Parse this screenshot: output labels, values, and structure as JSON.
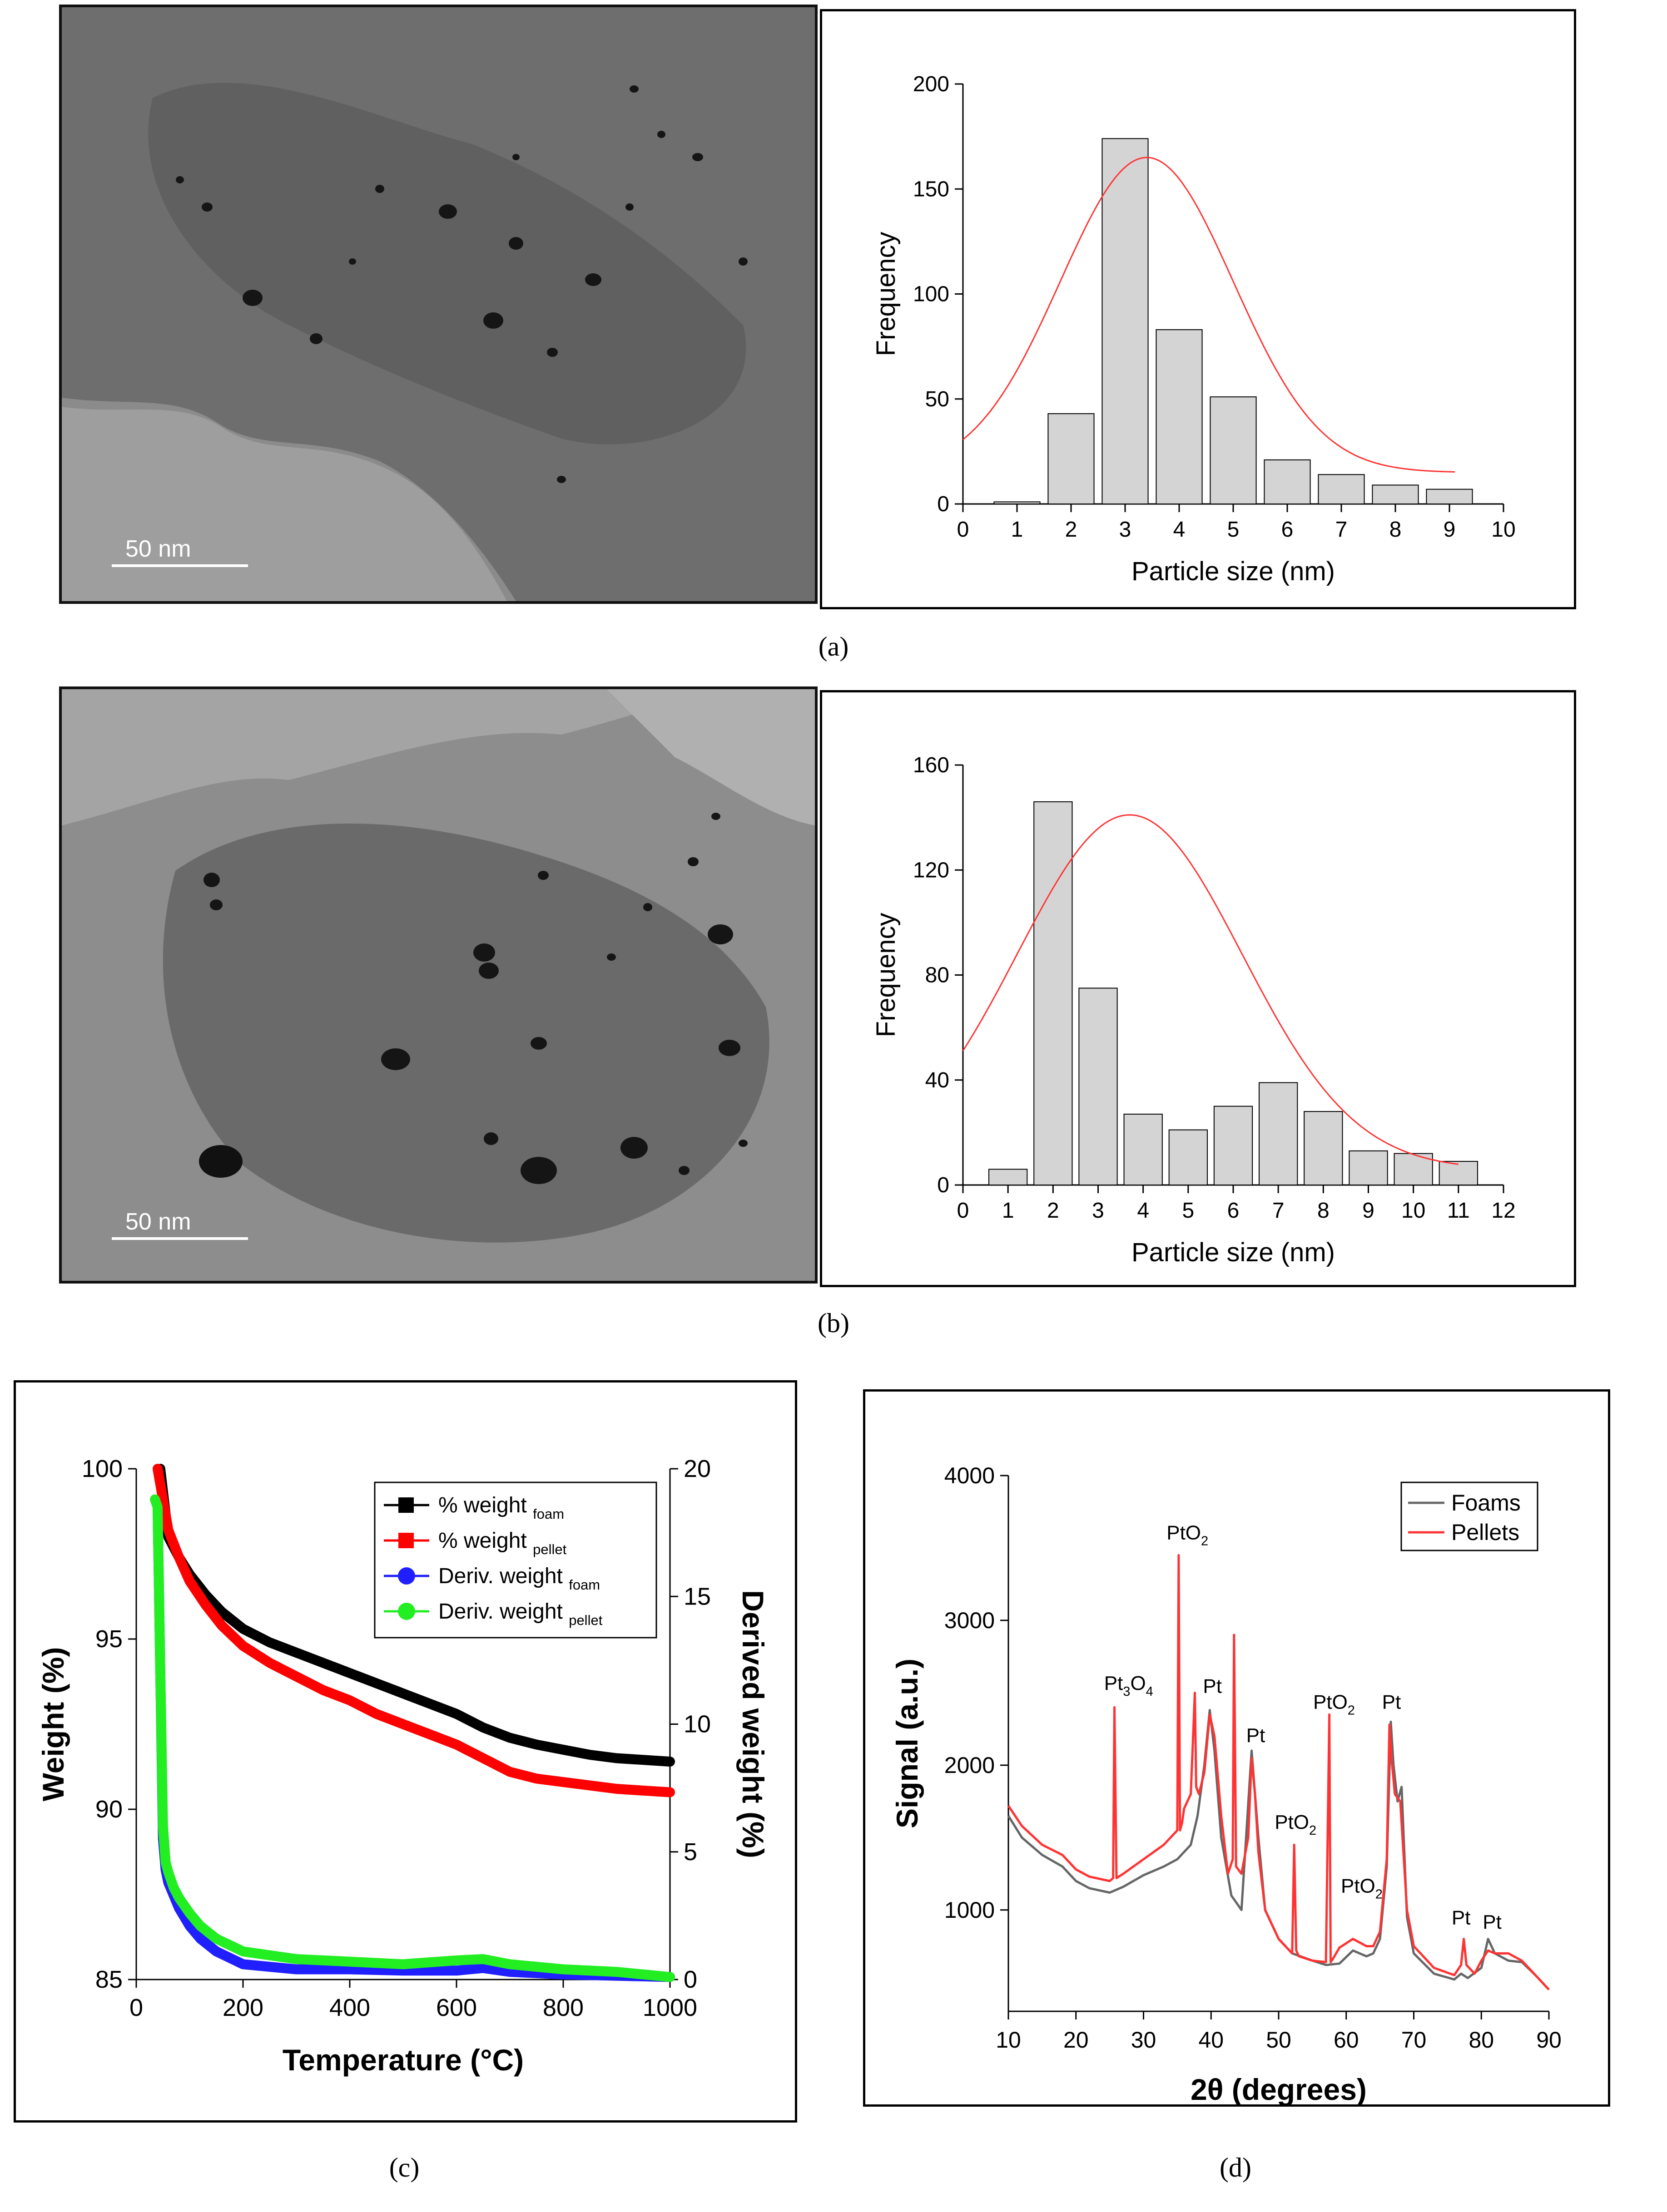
{
  "figure": {
    "captions": {
      "a": "(a)",
      "b": "(b)",
      "c": "(c)",
      "d": "(d)"
    },
    "scale_bars": {
      "a": "50 nm",
      "b": "50 nm"
    },
    "colors": {
      "bar_fill": "#d4d4d4",
      "fit_line": "#ff3333",
      "black": "#000000",
      "red": "#ff0000",
      "blue": "#1f1fff",
      "green": "#22ee22",
      "grey": "#666666"
    }
  },
  "chart_data": [
    {
      "id": "hist_a",
      "type": "bar",
      "xlabel": "Particle size (nm)",
      "ylabel": "Frequency",
      "xlim": [
        0,
        10
      ],
      "ylim": [
        0,
        200
      ],
      "xticks": [
        0,
        1,
        2,
        3,
        4,
        5,
        6,
        7,
        8,
        9,
        10
      ],
      "yticks": [
        0,
        50,
        100,
        150,
        200
      ],
      "bar_width": 0.85,
      "categories": [
        1,
        2,
        3,
        4,
        5,
        6,
        7,
        8,
        9
      ],
      "values": [
        1,
        43,
        174,
        83,
        51,
        21,
        14,
        9,
        7
      ],
      "fit": {
        "type": "gaussian",
        "x_range": [
          0,
          9.1
        ],
        "peak_x": 3.4,
        "peak_y": 165,
        "sigma": 1.6,
        "baseline": 15
      }
    },
    {
      "id": "hist_b",
      "type": "bar",
      "xlabel": "Particle size (nm)",
      "ylabel": "Frequency",
      "xlim": [
        0,
        12
      ],
      "ylim": [
        0,
        160
      ],
      "xticks": [
        0,
        1,
        2,
        3,
        4,
        5,
        6,
        7,
        8,
        9,
        10,
        11,
        12
      ],
      "yticks": [
        0,
        40,
        80,
        120,
        160
      ],
      "bar_width": 0.85,
      "categories": [
        1,
        2,
        3,
        4,
        5,
        6,
        7,
        8,
        9,
        10,
        11
      ],
      "values": [
        6,
        146,
        75,
        27,
        21,
        30,
        39,
        28,
        13,
        12,
        9
      ],
      "fit": {
        "type": "gaussian",
        "x_range": [
          0,
          11
        ],
        "peak_x": 3.7,
        "peak_y": 141,
        "sigma": 2.5,
        "baseline": 6
      }
    },
    {
      "id": "tga_c",
      "type": "line",
      "xlabel": "Temperature (°C)",
      "ylabel": "Weight (%)",
      "y2label": "Derived weight (%)",
      "xlim": [
        0,
        1000
      ],
      "ylim": [
        85,
        100
      ],
      "y2lim": [
        0,
        20
      ],
      "xticks": [
        0,
        200,
        400,
        600,
        800,
        1000
      ],
      "yticks": [
        85,
        90,
        95,
        100
      ],
      "y2ticks": [
        0,
        5,
        10,
        15,
        20
      ],
      "legend_position": "top-right",
      "series": [
        {
          "name": "% weight",
          "sub": "foam",
          "axis": "left",
          "color": "#000000",
          "marker": "square",
          "x": [
            45,
            60,
            80,
            100,
            130,
            160,
            200,
            250,
            300,
            350,
            400,
            450,
            500,
            550,
            600,
            650,
            700,
            750,
            800,
            850,
            900,
            950,
            1000
          ],
          "y": [
            100,
            98.0,
            97.4,
            96.9,
            96.3,
            95.8,
            95.3,
            94.9,
            94.6,
            94.3,
            94.0,
            93.7,
            93.4,
            93.1,
            92.8,
            92.4,
            92.1,
            91.9,
            91.75,
            91.6,
            91.5,
            91.45,
            91.4
          ]
        },
        {
          "name": "% weight",
          "sub": "pellet",
          "axis": "left",
          "color": "#ff0000",
          "marker": "square",
          "x": [
            40,
            60,
            80,
            100,
            130,
            160,
            200,
            250,
            300,
            350,
            400,
            450,
            500,
            550,
            600,
            650,
            700,
            750,
            800,
            850,
            900,
            950,
            1000
          ],
          "y": [
            100,
            98.2,
            97.4,
            96.7,
            96.0,
            95.4,
            94.8,
            94.3,
            93.9,
            93.5,
            93.2,
            92.8,
            92.5,
            92.2,
            91.9,
            91.5,
            91.1,
            90.9,
            90.8,
            90.7,
            90.6,
            90.55,
            90.5
          ]
        },
        {
          "name": "Deriv. weight",
          "sub": "foam",
          "axis": "right",
          "color": "#1f1fff",
          "marker": "circle",
          "x": [
            40,
            45,
            50,
            55,
            60,
            70,
            80,
            100,
            120,
            150,
            200,
            300,
            400,
            500,
            600,
            650,
            700,
            800,
            900,
            1000
          ],
          "y": [
            18.5,
            12,
            5.5,
            4.3,
            3.8,
            3.3,
            2.8,
            2.1,
            1.6,
            1.1,
            0.6,
            0.4,
            0.4,
            0.35,
            0.35,
            0.45,
            0.3,
            0.2,
            0.15,
            0.1
          ]
        },
        {
          "name": "Deriv. weight",
          "sub": "pellet",
          "axis": "right",
          "color": "#22ee22",
          "marker": "circle",
          "x": [
            35,
            40,
            45,
            50,
            55,
            60,
            70,
            80,
            100,
            120,
            150,
            200,
            300,
            400,
            500,
            600,
            650,
            700,
            800,
            900,
            1000
          ],
          "y": [
            18.8,
            18.5,
            12,
            6,
            4.6,
            4.2,
            3.6,
            3.2,
            2.6,
            2.1,
            1.6,
            1.1,
            0.8,
            0.7,
            0.6,
            0.75,
            0.8,
            0.6,
            0.4,
            0.3,
            0.1
          ]
        }
      ]
    },
    {
      "id": "xrd_d",
      "type": "line",
      "xlabel": "2θ (degrees)",
      "ylabel": "Signal (a.u.)",
      "xlim": [
        10,
        90
      ],
      "ylim": [
        300,
        4000
      ],
      "xticks": [
        10,
        20,
        30,
        40,
        50,
        60,
        70,
        80,
        90
      ],
      "yticks": [
        1000,
        2000,
        3000,
        4000
      ],
      "legend_position": "top-right",
      "series": [
        {
          "name": "Foams",
          "color": "#666666",
          "x": [
            10,
            12,
            15,
            18,
            20,
            22,
            25,
            27,
            30,
            33,
            35,
            37,
            38,
            39,
            39.8,
            40.5,
            41.5,
            43,
            44.5,
            46,
            47,
            48,
            50,
            52,
            55,
            57,
            59,
            61,
            63,
            64,
            65,
            66,
            66.6,
            67,
            67.6,
            68.2,
            69,
            70,
            73,
            76,
            77,
            78,
            80,
            81,
            82,
            84,
            86,
            88,
            90
          ],
          "y": [
            1650,
            1500,
            1380,
            1300,
            1200,
            1150,
            1120,
            1160,
            1240,
            1300,
            1350,
            1450,
            1650,
            2000,
            2380,
            2100,
            1500,
            1100,
            1000,
            2100,
            1500,
            1000,
            800,
            700,
            650,
            620,
            630,
            720,
            680,
            700,
            800,
            1300,
            2300,
            2000,
            1750,
            1850,
            950,
            700,
            560,
            520,
            560,
            530,
            600,
            800,
            700,
            650,
            640,
            550,
            450
          ]
        },
        {
          "name": "Pellets",
          "color": "#ff3333",
          "x": [
            10,
            12,
            15,
            18,
            20,
            22,
            25,
            25.5,
            25.7,
            26,
            27,
            30,
            33,
            35,
            35.2,
            35.4,
            35.7,
            36,
            37,
            37.6,
            37.8,
            38.2,
            39,
            39.8,
            40.5,
            41.5,
            42.5,
            43.2,
            43.4,
            43.7,
            44.5,
            45.5,
            46,
            46.5,
            47,
            48,
            50,
            52,
            52.3,
            52.6,
            53,
            55,
            57,
            57.5,
            57.7,
            58,
            59,
            61,
            63,
            64,
            65,
            66,
            66.4,
            66.7,
            67.2,
            68,
            69,
            70,
            73,
            76,
            77,
            77.4,
            77.8,
            79,
            80,
            81,
            82,
            84,
            86,
            88,
            90
          ],
          "y": [
            1720,
            1580,
            1450,
            1380,
            1280,
            1230,
            1200,
            1220,
            2400,
            1220,
            1250,
            1350,
            1450,
            1550,
            3450,
            1550,
            1600,
            1700,
            1800,
            2500,
            1850,
            1800,
            1950,
            2350,
            2200,
            1650,
            1250,
            1350,
            2900,
            1300,
            1250,
            1500,
            2050,
            1800,
            1400,
            1000,
            800,
            700,
            1450,
            720,
            680,
            650,
            640,
            2350,
            640,
            660,
            740,
            800,
            750,
            750,
            850,
            1350,
            2280,
            2050,
            1800,
            1750,
            1000,
            750,
            600,
            550,
            620,
            800,
            620,
            560,
            650,
            720,
            700,
            700,
            650,
            550,
            450
          ]
        }
      ],
      "annotations": [
        {
          "text": "Pt",
          "sub": "3",
          "text2": "O",
          "sub2": "4",
          "x": 27.8,
          "y": 2520
        },
        {
          "text": "PtO",
          "sub": "2",
          "x": 36.5,
          "y": 3560
        },
        {
          "text": "Pt",
          "x": 40.2,
          "y": 2500
        },
        {
          "text": "Pt",
          "x": 46.6,
          "y": 2160
        },
        {
          "text": "PtO",
          "sub": "2",
          "x": 52.5,
          "y": 1560
        },
        {
          "text": "PtO",
          "sub": "2",
          "x": 58.2,
          "y": 2390
        },
        {
          "text": "Pt",
          "x": 66.7,
          "y": 2390
        },
        {
          "text": "PtO",
          "sub": "2",
          "x": 62.3,
          "y": 1120
        },
        {
          "text": "Pt",
          "x": 77,
          "y": 900
        },
        {
          "text": "Pt",
          "x": 81.6,
          "y": 870
        }
      ]
    }
  ]
}
